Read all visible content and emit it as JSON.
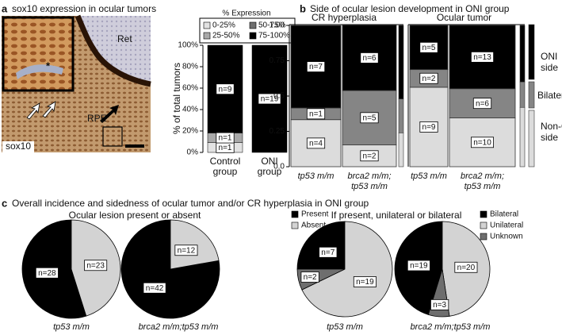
{
  "panels": [
    {
      "letter": "a",
      "title": "sox10 expression in ocular tumors"
    },
    {
      "letter": "b",
      "title": "Side of ocular lesion development in ONI group"
    },
    {
      "letter": "c",
      "title": "Overall incidence and sidedness of ocular tumor and/or CR hyperplasia in ONI group"
    }
  ],
  "image": {
    "labels": [
      "Ret",
      "RPE",
      "sox10",
      "*"
    ]
  },
  "side_legend": [
    [
      "ONI",
      "side"
    ],
    [
      "Bilateral"
    ],
    [
      "Non-ONI",
      "side"
    ]
  ],
  "chart_data": [
    {
      "type": "bar",
      "stacked": true,
      "legend_title": "% Expression",
      "categories": [
        [
          "Control",
          "group"
        ],
        [
          "ONI",
          "group"
        ]
      ],
      "ylabel": "% of total tumors",
      "ylim": [
        0,
        100
      ],
      "yticks": [
        {
          "value": 0,
          "label": "0%"
        },
        {
          "value": 20,
          "label": "20%"
        },
        {
          "value": 40,
          "label": "40%"
        },
        {
          "value": 60,
          "label": "60%"
        },
        {
          "value": 80,
          "label": "80%"
        },
        {
          "value": 100,
          "label": "100%"
        }
      ],
      "series": [
        {
          "name": "0-25%",
          "color": "#e2e2e2",
          "values": [
            9.1,
            0
          ],
          "segment_labels": [
            "n=1",
            null
          ]
        },
        {
          "name": "25-50%",
          "color": "#a9a9a9",
          "values": [
            9.1,
            0
          ],
          "segment_labels": [
            "n=1",
            null
          ]
        },
        {
          "name": "50-75%",
          "color": "#6e6e6e",
          "values": [
            0,
            0
          ],
          "segment_labels": [
            null,
            null
          ]
        },
        {
          "name": "75-100%",
          "color": "#000000",
          "values": [
            81.8,
            100
          ],
          "segment_labels": [
            "n=9",
            "n=19"
          ]
        }
      ]
    },
    {
      "type": "mosaic",
      "title": "CR hyperplasia",
      "categories": [
        [
          "tp53 m/m"
        ],
        [
          "brca2 m/m;",
          "tp53 m/m"
        ]
      ],
      "ylim": [
        0,
        1
      ],
      "yticks": [
        {
          "value": 0,
          "label": "0.0"
        },
        0.25,
        0.5,
        0.75,
        {
          "value": 1,
          "label": "1.00"
        }
      ],
      "series": [
        {
          "color": "#dcdcdc",
          "values": [
            0.333,
            0.154
          ],
          "segment_labels": [
            "n=4",
            "n=2"
          ],
          "margin_value": 0.24
        },
        {
          "color": "#858585",
          "values": [
            0.083,
            0.385
          ],
          "segment_labels": [
            "n=1",
            "n=5"
          ],
          "margin_value": 0.24
        },
        {
          "color": "#000000",
          "values": [
            0.583,
            0.462
          ],
          "segment_labels": [
            "n=7",
            "n=6"
          ],
          "margin_value": 0.52
        }
      ]
    },
    {
      "type": "mosaic",
      "title": "Ocular tumor",
      "categories": [
        [
          "tp53 m/m"
        ],
        [
          "brca2 m/m;",
          "tp53 m/m"
        ]
      ],
      "ylim": [
        0,
        1
      ],
      "series": [
        {
          "color": "#dcdcdc",
          "values": [
            0.5625,
            0.345
          ],
          "segment_labels": [
            "n=9",
            "n=10"
          ],
          "margin_value": 0.42
        },
        {
          "color": "#858585",
          "values": [
            0.125,
            0.207
          ],
          "segment_labels": [
            "n=2",
            "n=6"
          ],
          "margin_value": 0.18
        },
        {
          "color": "#000000",
          "values": [
            0.3125,
            0.448
          ],
          "segment_labels": [
            "n=5",
            "n=13"
          ],
          "margin_value": 0.4
        }
      ]
    },
    {
      "type": "pie",
      "title": "Ocular lesion present or absent",
      "series": [
        {
          "name": "Present",
          "color": "#000000"
        },
        {
          "name": "Absent",
          "color": "#d3d3d3"
        }
      ],
      "pies": [
        {
          "label": "tp53 m/m",
          "values": [
            28,
            23
          ],
          "value_labels": [
            "n=28",
            "n=23"
          ]
        },
        {
          "label": "brca2 m/m;tp53 m/m",
          "values": [
            42,
            12
          ],
          "value_labels": [
            "n=42",
            "n=12"
          ]
        }
      ]
    },
    {
      "type": "pie",
      "title": "If present, unilateral or bilateral",
      "series": [
        {
          "name": "Bilateral",
          "color": "#000000"
        },
        {
          "name": "Unilateral",
          "color": "#d3d3d3"
        },
        {
          "name": "Unknown",
          "color": "#6e6e6e"
        }
      ],
      "pies": [
        {
          "label": "tp53 m/m",
          "values": [
            7,
            19,
            2
          ],
          "value_labels": [
            "n=7",
            "n=19",
            "n=2"
          ]
        },
        {
          "label": "brca2 m/m;tp53 m/m",
          "values": [
            19,
            20,
            3
          ],
          "value_labels": [
            "n=19",
            "n=20",
            "n=3"
          ]
        }
      ]
    }
  ]
}
